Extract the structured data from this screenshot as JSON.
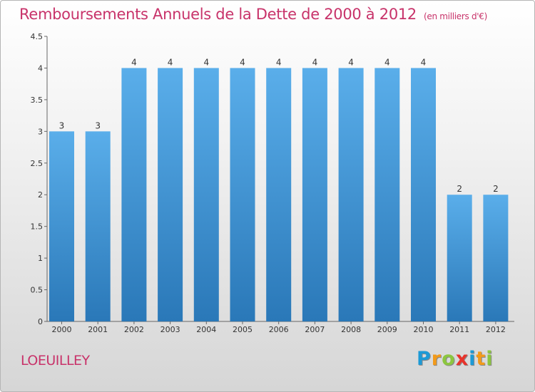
{
  "header": {
    "title": "Remboursements Annuels de la Dette de 2000 à 2012",
    "subtitle": "(en milliers d'€)"
  },
  "footer": {
    "commune": "LOEUILLEY",
    "logo_letters": [
      "P",
      "r",
      "o",
      "x",
      "i",
      "t",
      "i"
    ],
    "logo_colors": [
      "#1c9ad6",
      "#f29a1a",
      "#8cc63f",
      "#e8332b",
      "#1c9ad6",
      "#f29a1a",
      "#8cc63f"
    ]
  },
  "colors": {
    "bar_top": "#5aaeea",
    "bar_bottom": "#2a78b8",
    "title": "#c8336a"
  },
  "chart_data": {
    "type": "bar",
    "title": "Remboursements Annuels de la Dette de 2000 à 2012",
    "xlabel": "",
    "ylabel": "",
    "categories": [
      "2000",
      "2001",
      "2002",
      "2003",
      "2004",
      "2005",
      "2006",
      "2007",
      "2008",
      "2009",
      "2010",
      "2011",
      "2012"
    ],
    "values": [
      3,
      3,
      4,
      4,
      4,
      4,
      4,
      4,
      4,
      4,
      4,
      2,
      2
    ],
    "ylim": [
      0,
      4.5
    ],
    "yticks": [
      "0",
      "0.5",
      "1",
      "1.5",
      "2",
      "2.5",
      "3",
      "3.5",
      "4",
      "4.5"
    ],
    "ytick_values": [
      0,
      0.5,
      1,
      1.5,
      2,
      2.5,
      3,
      3.5,
      4,
      4.5
    ],
    "grid": false,
    "data_labels": true
  }
}
